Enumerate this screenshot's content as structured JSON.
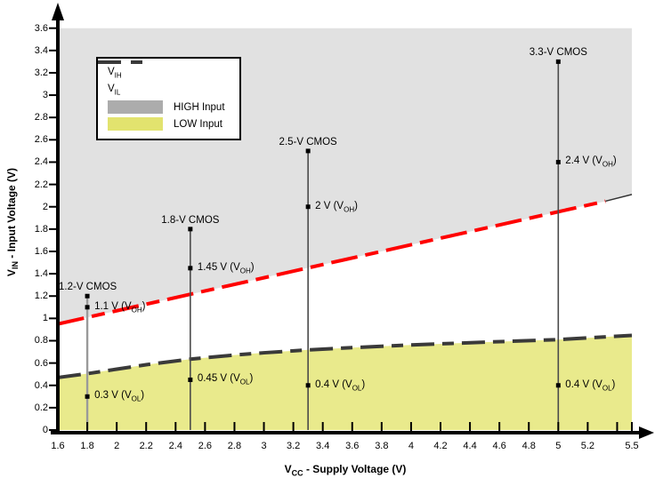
{
  "chart_data": {
    "type": "line",
    "title": "",
    "x_axis": {
      "label_main": "V",
      "label_sub": "CC",
      "label_rest": " - Supply Voltage (V)",
      "min": 1.6,
      "max": 5.5,
      "ticks": [
        {
          "v": 1.6,
          "label": "1.6"
        },
        {
          "v": 1.8,
          "label": "1.8"
        },
        {
          "v": 2.0,
          "label": "2"
        },
        {
          "v": 2.2,
          "label": "2.2"
        },
        {
          "v": 2.4,
          "label": "2.4"
        },
        {
          "v": 2.6,
          "label": "2.6"
        },
        {
          "v": 2.8,
          "label": "2.8"
        },
        {
          "v": 3.0,
          "label": "3"
        },
        {
          "v": 3.2,
          "label": "3.2"
        },
        {
          "v": 3.4,
          "label": "3.4"
        },
        {
          "v": 3.6,
          "label": "3.6"
        },
        {
          "v": 3.8,
          "label": "3.8"
        },
        {
          "v": 4.0,
          "label": "4"
        },
        {
          "v": 4.2,
          "label": "4.2"
        },
        {
          "v": 4.4,
          "label": "4.4"
        },
        {
          "v": 4.6,
          "label": "4.6"
        },
        {
          "v": 4.8,
          "label": "4.8"
        },
        {
          "v": 5.0,
          "label": "5"
        },
        {
          "v": 5.2,
          "label": "5.2"
        },
        {
          "v": 5.4,
          "label": ""
        },
        {
          "v": 5.5,
          "label": "5.5"
        }
      ]
    },
    "y_axis": {
      "label_main": "V",
      "label_sub": "IN",
      "label_rest": " - Input Voltage (V)",
      "min": 0,
      "max": 3.6,
      "ticks": [
        {
          "v": 0,
          "label": "0"
        },
        {
          "v": 0.2,
          "label": "0.2"
        },
        {
          "v": 0.4,
          "label": "0.4"
        },
        {
          "v": 0.6,
          "label": "0.6"
        },
        {
          "v": 0.8,
          "label": "0.8"
        },
        {
          "v": 1.0,
          "label": "1"
        },
        {
          "v": 1.2,
          "label": "1.2"
        },
        {
          "v": 1.4,
          "label": "1.4"
        },
        {
          "v": 1.6,
          "label": "1.6"
        },
        {
          "v": 1.8,
          "label": "1.8"
        },
        {
          "v": 2.0,
          "label": "2"
        },
        {
          "v": 2.2,
          "label": "2.2"
        },
        {
          "v": 2.4,
          "label": "2.4"
        },
        {
          "v": 2.6,
          "label": "2.6"
        },
        {
          "v": 2.8,
          "label": "2.8"
        },
        {
          "v": 3.0,
          "label": "3"
        },
        {
          "v": 3.2,
          "label": "3.2"
        },
        {
          "v": 3.4,
          "label": "3.4"
        },
        {
          "v": 3.6,
          "label": "3.6"
        }
      ]
    },
    "series": [
      {
        "id": "vih",
        "name_main": "V",
        "name_sub": "IH",
        "color": "#ff0000",
        "style": "dashed",
        "points": [
          [
            1.6,
            0.95
          ],
          [
            5.32,
            2.05
          ]
        ]
      },
      {
        "id": "vil",
        "name_main": "V",
        "name_sub": "IL",
        "color": "#3a3a3a",
        "style": "dashed",
        "points": [
          [
            1.6,
            0.47
          ],
          [
            1.8,
            0.505
          ],
          [
            2.0,
            0.545
          ],
          [
            2.2,
            0.585
          ],
          [
            2.5,
            0.635
          ],
          [
            2.8,
            0.672
          ],
          [
            3.0,
            0.692
          ],
          [
            3.3,
            0.718
          ],
          [
            3.6,
            0.738
          ],
          [
            4.0,
            0.762
          ],
          [
            4.5,
            0.787
          ],
          [
            5.0,
            0.81
          ],
          [
            5.5,
            0.848
          ]
        ]
      }
    ],
    "boundary_segment": {
      "color": "#333333",
      "points": [
        [
          5.32,
          2.05
        ],
        [
          5.5,
          2.11
        ]
      ]
    },
    "regions": [
      {
        "name": "HIGH Input",
        "fill": "#e1e1e1",
        "legend_fill": "#acacac",
        "extent": "above VIH up to 3.6 V"
      },
      {
        "name": "LOW Input",
        "fill": "#e9ea8c",
        "legend_fill": "#e2e36e",
        "extent": "below VIL down to 0 V"
      }
    ],
    "cmos_lines": [
      {
        "label": "1.2-V CMOS",
        "x": 1.8,
        "top": 1.2,
        "line_color": "#9a9a9a",
        "line_width": 2.4,
        "label_align": "left",
        "markers": [
          {
            "y": 1.1,
            "text": "1.1 V",
            "ref": "OH"
          },
          {
            "y": 0.3,
            "text": "0.3 V",
            "ref": "OL"
          }
        ]
      },
      {
        "label": "1.8-V CMOS",
        "x": 2.5,
        "top": 1.8,
        "line_color": "#4a4a4a",
        "line_width": 1.6,
        "label_align": "center",
        "markers": [
          {
            "y": 1.45,
            "text": "1.45 V",
            "ref": "OH"
          },
          {
            "y": 0.45,
            "text": "0.45 V",
            "ref": "OL"
          }
        ]
      },
      {
        "label": "2.5-V CMOS",
        "x": 3.3,
        "top": 2.5,
        "line_color": "#4a4a4a",
        "line_width": 1.6,
        "label_align": "center",
        "markers": [
          {
            "y": 2.0,
            "text": "2 V",
            "ref": "OH"
          },
          {
            "y": 0.4,
            "text": "0.4 V",
            "ref": "OL"
          }
        ]
      },
      {
        "label": "3.3-V CMOS",
        "x": 5.0,
        "top": 3.3,
        "line_color": "#4a4a4a",
        "line_width": 1.6,
        "label_align": "center",
        "markers": [
          {
            "y": 2.4,
            "text": "2.4 V",
            "ref": "OH"
          },
          {
            "y": 0.4,
            "text": "0.4 V",
            "ref": "OL"
          }
        ]
      }
    ],
    "legend": {
      "position": "top-left",
      "entries": [
        {
          "type": "line",
          "color": "#ff0000",
          "main": "V",
          "sub": "IH"
        },
        {
          "type": "line",
          "color": "#3a3a3a",
          "main": "V",
          "sub": "IL"
        },
        {
          "type": "swatch",
          "color": "#acacac",
          "label": "HIGH Input"
        },
        {
          "type": "swatch",
          "color": "#e2e36e",
          "label": "LOW Input"
        }
      ]
    }
  }
}
